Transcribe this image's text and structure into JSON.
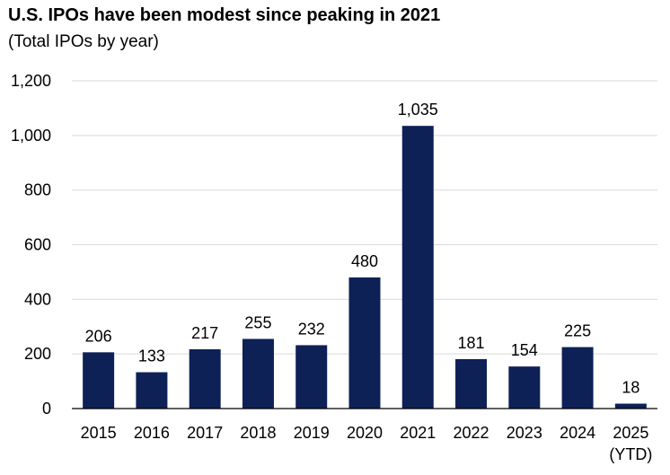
{
  "header": {
    "title": "U.S. IPOs have been modest since peaking in 2021",
    "subtitle": "(Total IPOs by year)"
  },
  "colors": {
    "bar": "#0d2157",
    "grid": "#d9d9d9",
    "axis": "#000000"
  },
  "chart_data": {
    "type": "bar",
    "title": "U.S. IPOs have been modest since peaking in 2021",
    "subtitle": "(Total IPOs by year)",
    "xlabel": "",
    "ylabel": "",
    "categories": [
      "2015",
      "2016",
      "2017",
      "2018",
      "2019",
      "2020",
      "2021",
      "2022",
      "2023",
      "2024",
      "2025\n(YTD)"
    ],
    "values": [
      206,
      133,
      217,
      255,
      232,
      480,
      1035,
      181,
      154,
      225,
      18
    ],
    "data_labels": [
      "206",
      "133",
      "217",
      "255",
      "232",
      "480",
      "1,035",
      "181",
      "154",
      "225",
      "18"
    ],
    "yticks": [
      0,
      200,
      400,
      600,
      800,
      1000,
      1200
    ],
    "ytick_labels": [
      "0",
      "200",
      "400",
      "600",
      "800",
      "1,000",
      "1,200"
    ],
    "ylim": [
      0,
      1200
    ],
    "grid": true,
    "legend": "none"
  }
}
